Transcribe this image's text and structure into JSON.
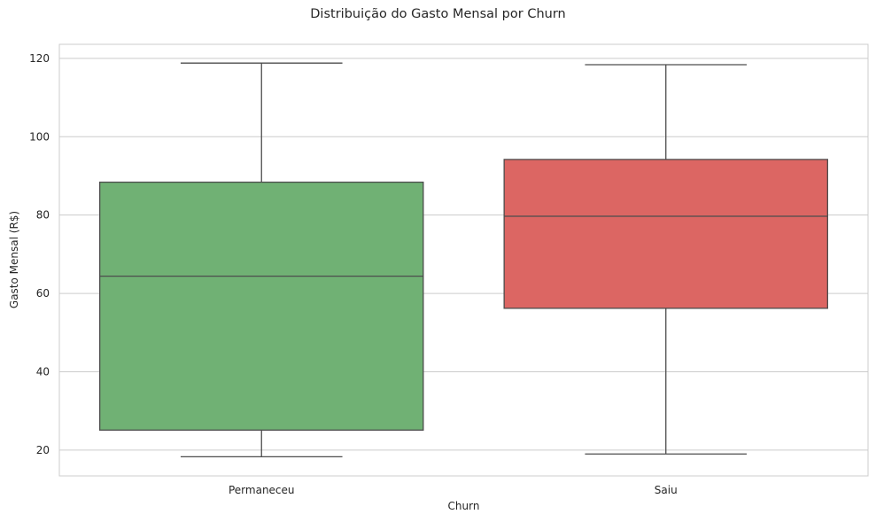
{
  "chart_data": {
    "type": "box",
    "title": "Distribuição do Gasto Mensal por Churn",
    "xlabel": "Churn",
    "ylabel": "Gasto Mensal (R$)",
    "categories": [
      "Permaneceu",
      "Saiu"
    ],
    "ylim": [
      13.4,
      123.6
    ],
    "yticks": [
      20,
      40,
      60,
      80,
      100,
      120
    ],
    "grid": true,
    "boxes": [
      {
        "category": "Permaneceu",
        "whisker_low": 18.3,
        "q1": 25.1,
        "median": 64.4,
        "q3": 88.4,
        "whisker_high": 118.8,
        "color": "#70b174"
      },
      {
        "category": "Saiu",
        "whisker_low": 19.0,
        "q1": 56.2,
        "median": 79.7,
        "q3": 94.2,
        "whisker_high": 118.4,
        "color": "#dc6663"
      }
    ],
    "colors": {
      "grid": "#cccccc",
      "line": "#4d4d4d",
      "frame": "#cccccc"
    }
  }
}
